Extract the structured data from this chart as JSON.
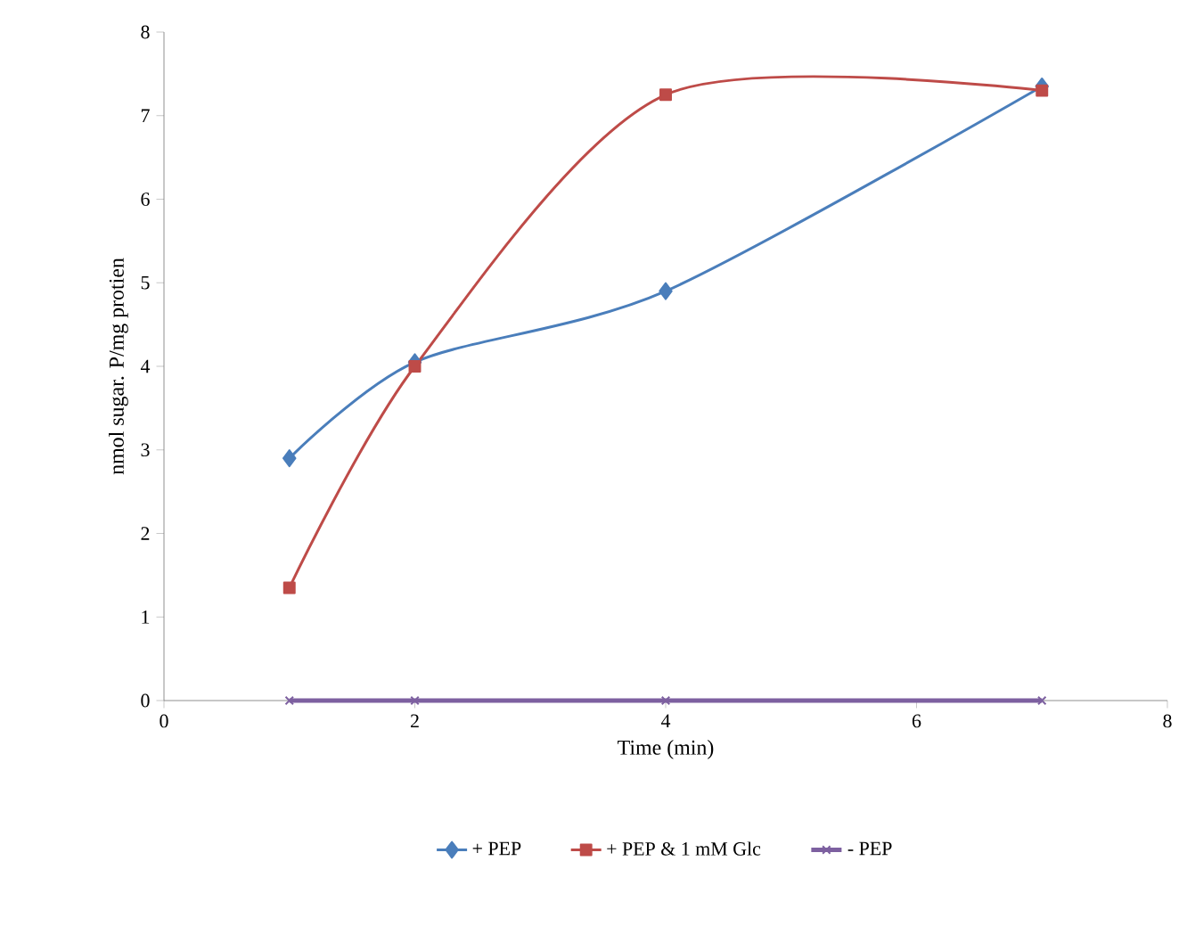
{
  "chart_data": {
    "type": "line",
    "xlabel": "Time (min)",
    "ylabel": "nmol sugar. P/mg protien",
    "xlim": [
      0,
      8
    ],
    "xticks": [
      0,
      2,
      4,
      6,
      8
    ],
    "ylim": [
      0,
      8
    ],
    "yticks": [
      0,
      1,
      2,
      3,
      4,
      5,
      6,
      7,
      8
    ],
    "grid": false,
    "legend": "bottom",
    "line_style": "solid",
    "series": [
      {
        "name": "+ PEP",
        "color": "#4a7ebb",
        "marker": "diamond",
        "x": [
          1,
          2,
          4,
          7
        ],
        "values": [
          2.9,
          4.05,
          4.9,
          7.35
        ]
      },
      {
        "name": "+ PEP &  1 mM Glc",
        "color": "#be4b48",
        "marker": "square",
        "x": [
          1,
          2,
          4,
          7
        ],
        "values": [
          1.35,
          4.0,
          7.25,
          7.3
        ]
      },
      {
        "name": "- PEP",
        "color": "#7d60a0",
        "marker": "cross",
        "x": [
          1,
          2,
          4,
          7
        ],
        "values": [
          0,
          0,
          0,
          0
        ]
      }
    ]
  }
}
